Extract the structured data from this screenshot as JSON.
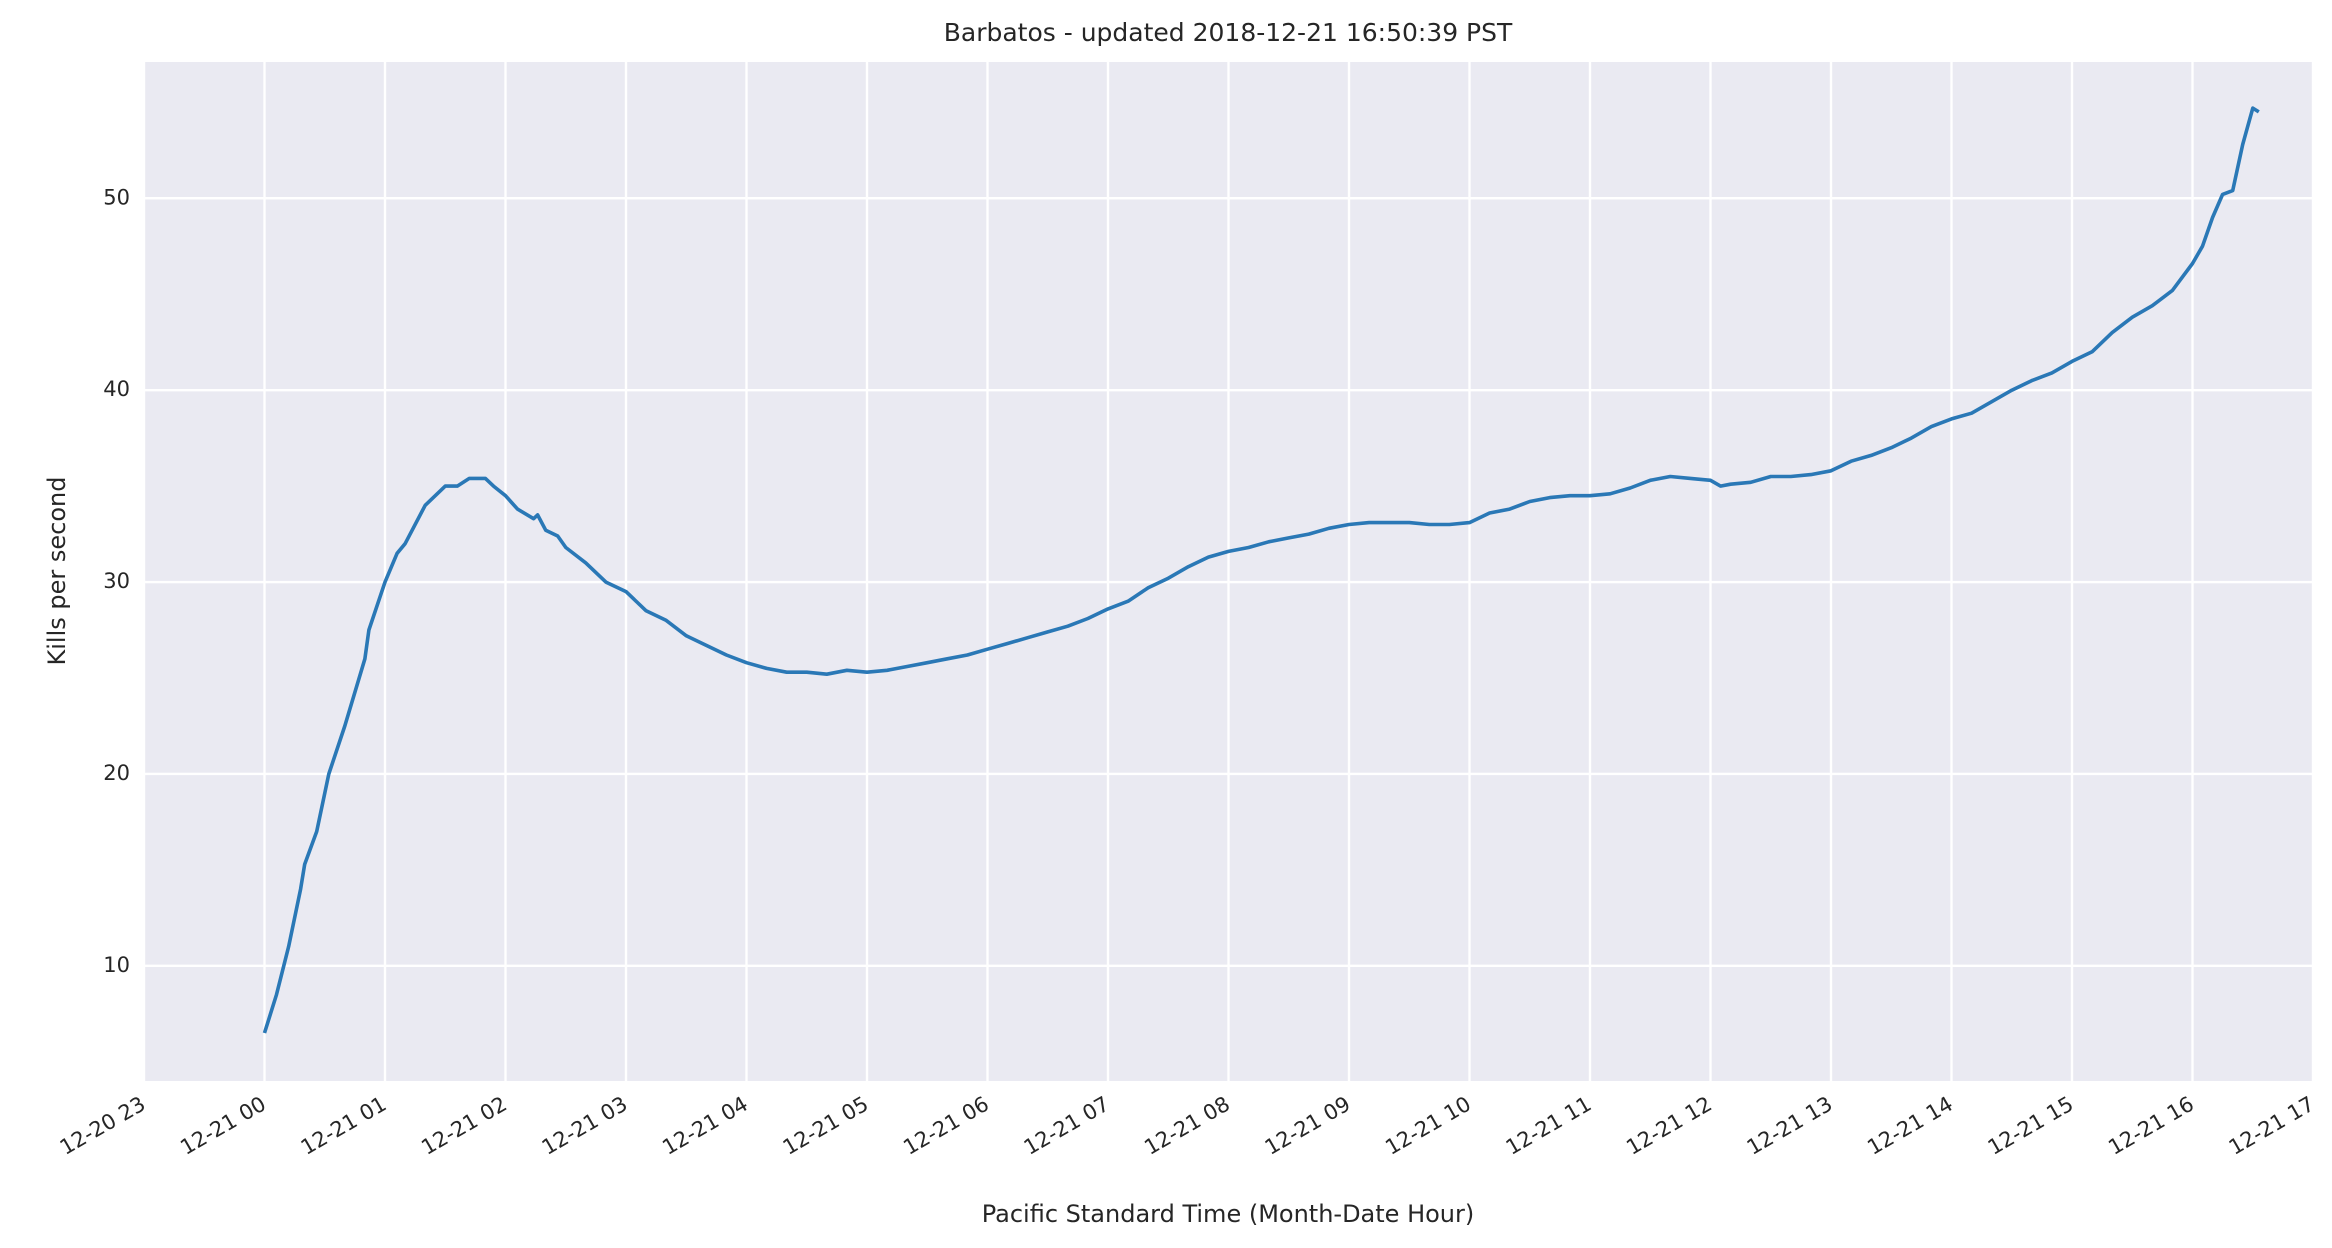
{
  "chart_data": {
    "type": "line",
    "title": "Barbatos - updated 2018-12-21 16:50:39 PST",
    "x_label": "Pacific Standard Time (Month-Date Hour)",
    "y_label": "Kills per second",
    "color": "#2a78b6",
    "x": [
      "12-21 00:00",
      "12-21 00:06",
      "12-21 00:12",
      "12-21 00:18",
      "12-21 00:20",
      "12-21 00:26",
      "12-21 00:32",
      "12-21 00:40",
      "12-21 00:50",
      "12-21 00:52",
      "12-21 01:00",
      "12-21 01:06",
      "12-21 01:10",
      "12-21 01:20",
      "12-21 01:30",
      "12-21 01:36",
      "12-21 01:42",
      "12-21 01:50",
      "12-21 01:54",
      "12-21 02:00",
      "12-21 02:06",
      "12-21 02:14",
      "12-21 02:16",
      "12-21 02:20",
      "12-21 02:26",
      "12-21 02:30",
      "12-21 02:40",
      "12-21 02:50",
      "12-21 03:00",
      "12-21 03:10",
      "12-21 03:20",
      "12-21 03:30",
      "12-21 03:40",
      "12-21 03:50",
      "12-21 04:00",
      "12-21 04:10",
      "12-21 04:20",
      "12-21 04:30",
      "12-21 04:40",
      "12-21 04:50",
      "12-21 05:00",
      "12-21 05:10",
      "12-21 05:20",
      "12-21 05:30",
      "12-21 05:40",
      "12-21 05:50",
      "12-21 06:00",
      "12-21 06:10",
      "12-21 06:20",
      "12-21 06:30",
      "12-21 06:40",
      "12-21 06:50",
      "12-21 07:00",
      "12-21 07:10",
      "12-21 07:20",
      "12-21 07:30",
      "12-21 07:40",
      "12-21 07:50",
      "12-21 08:00",
      "12-21 08:10",
      "12-21 08:20",
      "12-21 08:30",
      "12-21 08:40",
      "12-21 08:50",
      "12-21 09:00",
      "12-21 09:10",
      "12-21 09:20",
      "12-21 09:30",
      "12-21 09:40",
      "12-21 09:50",
      "12-21 10:00",
      "12-21 10:10",
      "12-21 10:20",
      "12-21 10:30",
      "12-21 10:40",
      "12-21 10:50",
      "12-21 11:00",
      "12-21 11:10",
      "12-21 11:20",
      "12-21 11:30",
      "12-21 11:40",
      "12-21 11:50",
      "12-21 12:00",
      "12-21 12:05",
      "12-21 12:10",
      "12-21 12:20",
      "12-21 12:30",
      "12-21 12:40",
      "12-21 12:50",
      "12-21 13:00",
      "12-21 13:10",
      "12-21 13:20",
      "12-21 13:30",
      "12-21 13:40",
      "12-21 13:50",
      "12-21 14:00",
      "12-21 14:10",
      "12-21 14:20",
      "12-21 14:30",
      "12-21 14:40",
      "12-21 14:50",
      "12-21 15:00",
      "12-21 15:10",
      "12-21 15:20",
      "12-21 15:30",
      "12-21 15:40",
      "12-21 15:50",
      "12-21 16:00",
      "12-21 16:05",
      "12-21 16:10",
      "12-21 16:15",
      "12-21 16:20",
      "12-21 16:25",
      "12-21 16:30",
      "12-21 16:33"
    ],
    "values": [
      6.5,
      8.5,
      11,
      14,
      15.3,
      17,
      20,
      22.5,
      26,
      27.5,
      30,
      31.5,
      32,
      34,
      35,
      35,
      35.4,
      35.4,
      35,
      34.5,
      33.8,
      33.3,
      33.5,
      32.7,
      32.4,
      31.8,
      31,
      30,
      29.5,
      28.5,
      28,
      27.2,
      26.7,
      26.2,
      25.8,
      25.5,
      25.3,
      25.3,
      25.2,
      25.4,
      25.3,
      25.4,
      25.6,
      25.8,
      26,
      26.2,
      26.5,
      26.8,
      27.1,
      27.4,
      27.7,
      28.1,
      28.6,
      29,
      29.7,
      30.2,
      30.8,
      31.3,
      31.6,
      31.8,
      32.1,
      32.3,
      32.5,
      32.8,
      33,
      33.1,
      33.1,
      33.1,
      33,
      33,
      33.1,
      33.6,
      33.8,
      34.2,
      34.4,
      34.5,
      34.5,
      34.6,
      34.9,
      35.3,
      35.5,
      35.4,
      35.3,
      35,
      35.1,
      35.2,
      35.5,
      35.5,
      35.6,
      35.8,
      36.3,
      36.6,
      37,
      37.5,
      38.1,
      38.5,
      38.8,
      39.4,
      40,
      40.5,
      40.9,
      41.5,
      42,
      43,
      43.8,
      44.4,
      45.2,
      46.6,
      47.5,
      49,
      50.2,
      50.4,
      52.8,
      54.7,
      54.5
    ],
    "xlim": [
      "12-20 23",
      "12-21 17"
    ],
    "xticks": [
      "12-20 23",
      "12-21 00",
      "12-21 01",
      "12-21 02",
      "12-21 03",
      "12-21 04",
      "12-21 05",
      "12-21 06",
      "12-21 07",
      "12-21 08",
      "12-21 09",
      "12-21 10",
      "12-21 11",
      "12-21 12",
      "12-21 13",
      "12-21 14",
      "12-21 15",
      "12-21 16",
      "12-21 17"
    ],
    "ylim": [
      4.0,
      57.1
    ],
    "yticks": [
      10,
      20,
      30,
      40,
      50
    ],
    "grid": true
  }
}
